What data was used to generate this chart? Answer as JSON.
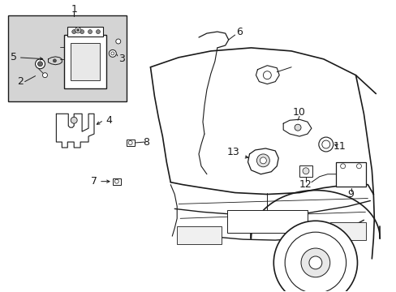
{
  "bg_color": "#ffffff",
  "fig_width": 4.89,
  "fig_height": 3.6,
  "dpi": 100,
  "line_color": "#1a1a1a",
  "gray_color": "#cccccc",
  "inset_bg": "#d8d8d8",
  "font_size": 8,
  "font_size_sm": 7
}
